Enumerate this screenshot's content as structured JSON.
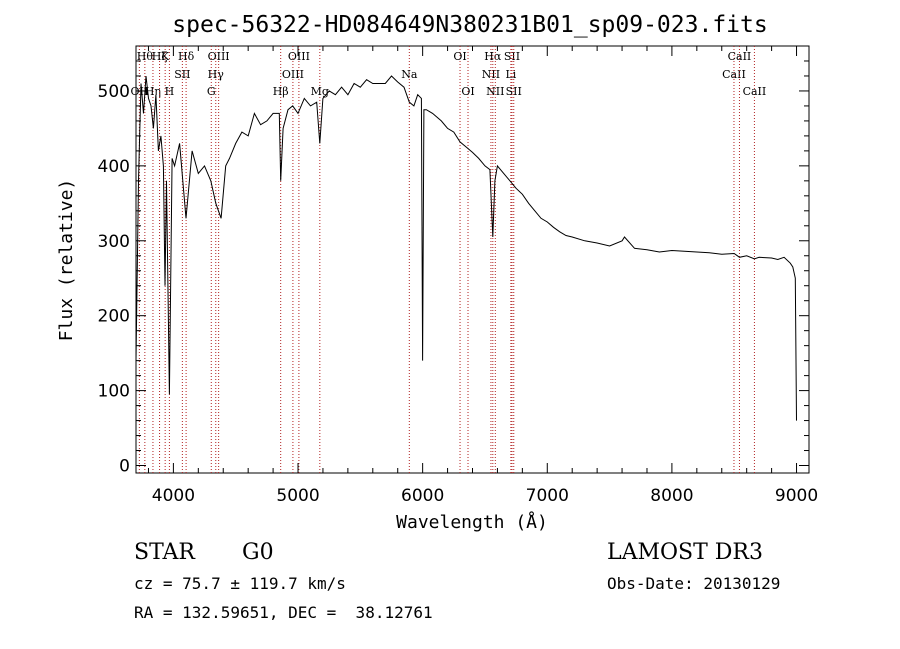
{
  "chart_data": {
    "type": "line",
    "title": "spec-56322-HD084649N380231B01_sp09-023.fits",
    "xlabel": "Wavelength (Å)",
    "ylabel": "Flux (relative)",
    "xlim": [
      3700,
      9100
    ],
    "ylim": [
      -10,
      560
    ],
    "x_ticks": [
      4000,
      5000,
      6000,
      7000,
      8000,
      9000
    ],
    "y_ticks": [
      0,
      100,
      200,
      300,
      400,
      500
    ],
    "line_color": "#000000",
    "marker_color": "#b22222",
    "grid": false,
    "series": [
      {
        "x": [
          3700,
          3720,
          3740,
          3760,
          3780,
          3800,
          3820,
          3840,
          3860,
          3880,
          3900,
          3920,
          3933,
          3945,
          3968,
          3990,
          4010,
          4050,
          4101,
          4150,
          4200,
          4250,
          4300,
          4340,
          4383,
          4420,
          4450,
          4500,
          4550,
          4600,
          4650,
          4700,
          4750,
          4800,
          4850,
          4861,
          4880,
          4920,
          4957,
          5000,
          5050,
          5100,
          5150,
          5175,
          5200,
          5250,
          5300,
          5350,
          5400,
          5450,
          5500,
          5550,
          5600,
          5650,
          5700,
          5750,
          5800,
          5850,
          5893,
          5930,
          5960,
          5990,
          6000,
          6010,
          6030,
          6080,
          6150,
          6200,
          6250,
          6300,
          6350,
          6400,
          6450,
          6500,
          6540,
          6563,
          6580,
          6600,
          6650,
          6700,
          6750,
          6800,
          6850,
          6900,
          6950,
          7000,
          7050,
          7100,
          7150,
          7200,
          7300,
          7400,
          7500,
          7600,
          7620,
          7700,
          7800,
          7900,
          8000,
          8100,
          8200,
          8300,
          8400,
          8500,
          8542,
          8600,
          8662,
          8700,
          8800,
          8850,
          8900,
          8950,
          8970,
          8990,
          9000
        ],
        "y": [
          140,
          380,
          510,
          470,
          520,
          490,
          480,
          450,
          495,
          420,
          440,
          400,
          240,
          380,
          95,
          410,
          400,
          430,
          330,
          420,
          390,
          400,
          380,
          350,
          330,
          400,
          410,
          430,
          445,
          440,
          470,
          455,
          460,
          470,
          470,
          380,
          450,
          475,
          480,
          470,
          490,
          480,
          485,
          430,
          490,
          500,
          495,
          505,
          495,
          510,
          505,
          515,
          510,
          510,
          510,
          520,
          512,
          505,
          485,
          480,
          495,
          490,
          140,
          475,
          475,
          470,
          460,
          450,
          445,
          432,
          425,
          418,
          410,
          400,
          395,
          305,
          380,
          400,
          390,
          380,
          370,
          362,
          350,
          340,
          330,
          325,
          318,
          312,
          307,
          305,
          300,
          297,
          293,
          300,
          305,
          290,
          288,
          285,
          287,
          286,
          285,
          284,
          282,
          283,
          278,
          280,
          276,
          278,
          277,
          275,
          278,
          270,
          265,
          250,
          60
        ]
      }
    ],
    "line_markers": [
      {
        "label": "OII",
        "x": 3727,
        "row": 2
      },
      {
        "label": "Hθ",
        "x": 3771,
        "row": 0
      },
      {
        "label": "Hη",
        "x": 3836,
        "row": 2
      },
      {
        "label": "Hζ",
        "x": 3889,
        "row": 0
      },
      {
        "label": "K",
        "x": 3934,
        "row": 0
      },
      {
        "label": "H",
        "x": 3968,
        "row": 2
      },
      {
        "label": "Hδ",
        "x": 4102,
        "row": 0
      },
      {
        "label": "SII",
        "x": 4072,
        "row": 1
      },
      {
        "label": "Hγ",
        "x": 4340,
        "row": 1
      },
      {
        "label": "G",
        "x": 4304,
        "row": 2
      },
      {
        "label": "OIII",
        "x": 4363,
        "row": 0
      },
      {
        "label": "Hβ",
        "x": 4861,
        "row": 2
      },
      {
        "label": "OIII",
        "x": 4959,
        "row": 1
      },
      {
        "label": "OIII",
        "x": 5007,
        "row": 0
      },
      {
        "label": "Mg",
        "x": 5175,
        "row": 2
      },
      {
        "label": "Na",
        "x": 5893,
        "row": 1
      },
      {
        "label": "OI",
        "x": 6300,
        "row": 0
      },
      {
        "label": "OI",
        "x": 6364,
        "row": 2
      },
      {
        "label": "NII",
        "x": 6548,
        "row": 1
      },
      {
        "label": "Hα",
        "x": 6563,
        "row": 0
      },
      {
        "label": "NII",
        "x": 6583,
        "row": 2
      },
      {
        "label": "Li",
        "x": 6708,
        "row": 1
      },
      {
        "label": "SII",
        "x": 6717,
        "row": 0
      },
      {
        "label": "SII",
        "x": 6731,
        "row": 2
      },
      {
        "label": "CaII",
        "x": 8498,
        "row": 1
      },
      {
        "label": "CaII",
        "x": 8542,
        "row": 0
      },
      {
        "label": "CaII",
        "x": 8662,
        "row": 2
      }
    ]
  },
  "info": {
    "object_type": "STAR",
    "subclass": "G0",
    "survey": "LAMOST DR3",
    "redshift_line": "cz = 75.7 ± 119.7 km/s",
    "obs_date": "Obs-Date: 20130129",
    "coords": "RA = 132.59651, DEC =  38.12761"
  }
}
